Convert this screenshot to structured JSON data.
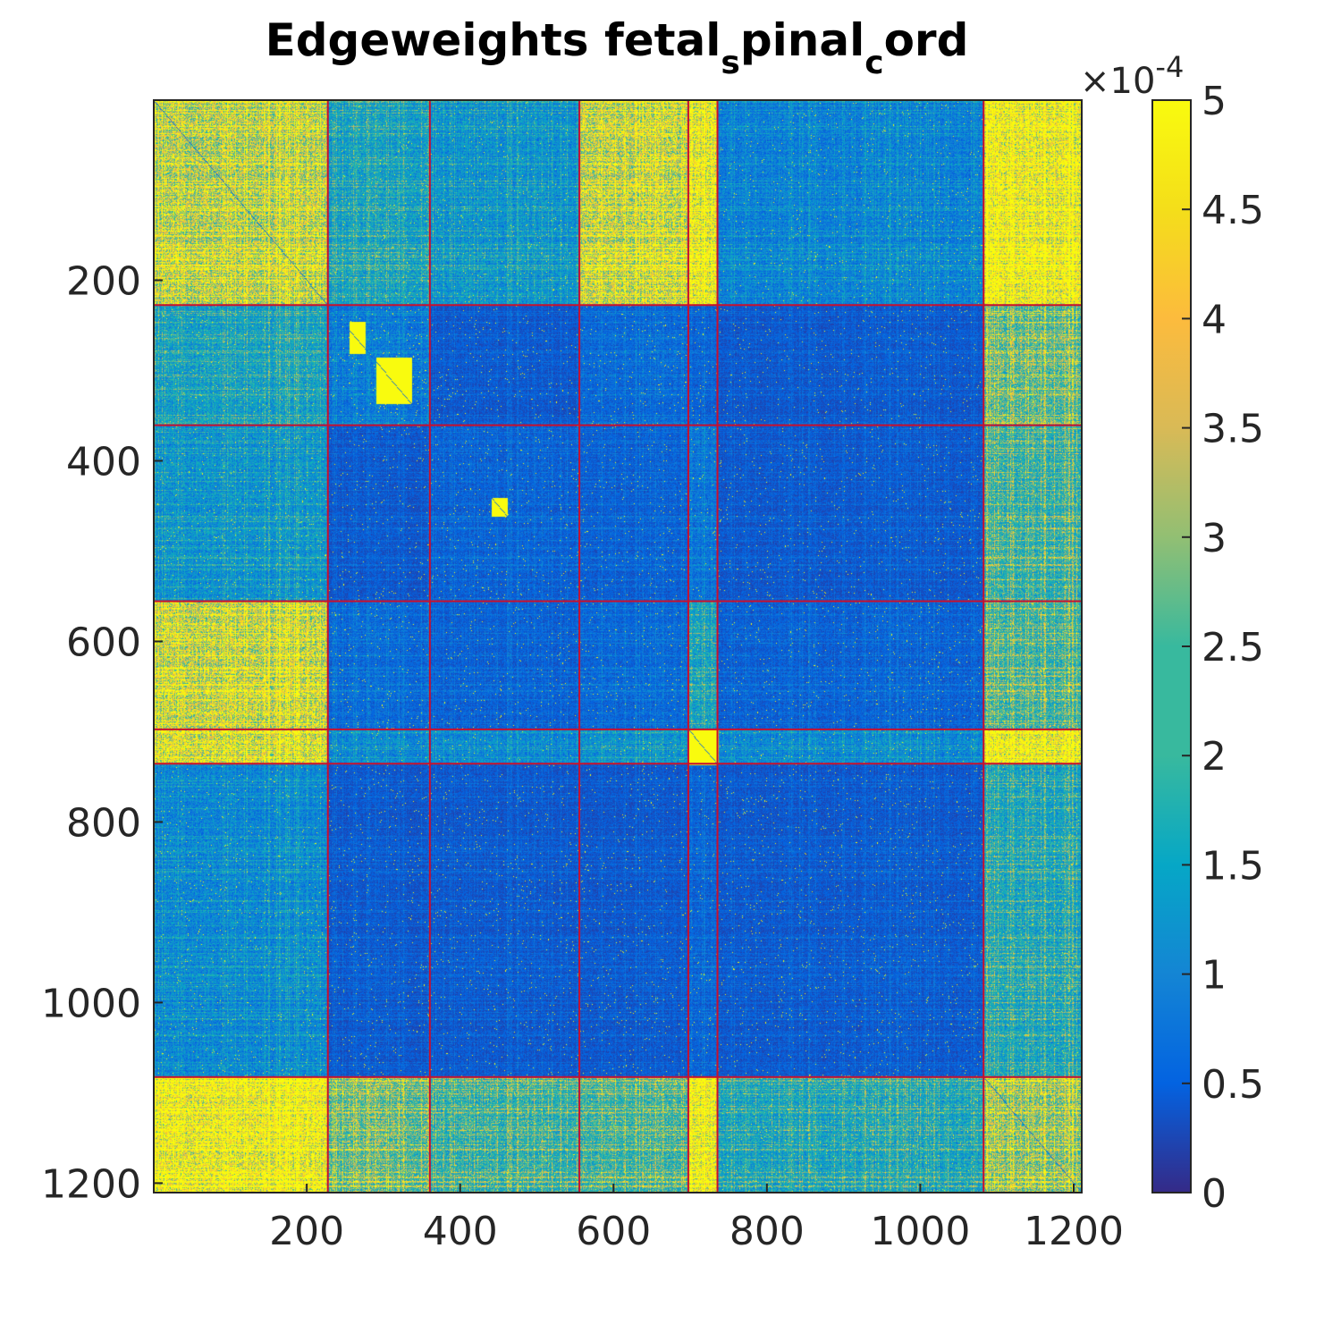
{
  "chart_data": {
    "type": "heatmap",
    "title": {
      "prefix": "Edgeweights fetal",
      "sub1": "s",
      "mid": "pinal",
      "sub2": "c",
      "suffix": "ord"
    },
    "xlabel": "",
    "ylabel": "",
    "n": 1210,
    "xlim": [
      0.5,
      1210.5
    ],
    "ylim": [
      0.5,
      1210.5
    ],
    "y_direction": "reversed",
    "x_ticks": [
      200,
      400,
      600,
      800,
      1000,
      1200
    ],
    "x_tick_labels": [
      "200",
      "400",
      "600",
      "800",
      "1000",
      "1200"
    ],
    "y_ticks": [
      200,
      400,
      600,
      800,
      1000,
      1200
    ],
    "y_tick_labels": [
      "200",
      "400",
      "600",
      "800",
      "1000",
      "1200"
    ],
    "colormap": "parula",
    "color_limits": [
      0,
      0.0005
    ],
    "colorbar": {
      "ticks": [
        0,
        0.5,
        1,
        1.5,
        2,
        2.5,
        3,
        3.5,
        4,
        4.5,
        5
      ],
      "tick_labels": [
        "0",
        "0.5",
        "1",
        "1.5",
        "2",
        "2.5",
        "3",
        "3.5",
        "4",
        "4.5",
        "5"
      ],
      "multiplier": "×10",
      "exponent": "-4"
    },
    "module_boundaries": [
      227,
      360,
      555,
      697,
      735,
      1082
    ],
    "module_mean_weights_e4": [
      [
        3.5,
        1.5,
        1.2,
        3.8,
        4.5,
        0.9,
        4.8
      ],
      [
        1.5,
        0.8,
        0.4,
        0.6,
        0.5,
        0.4,
        2.5
      ],
      [
        1.2,
        0.4,
        0.5,
        0.5,
        0.7,
        0.4,
        2.0
      ],
      [
        3.8,
        0.6,
        0.5,
        0.6,
        1.5,
        0.5,
        2.2
      ],
      [
        4.0,
        1.0,
        1.0,
        1.2,
        5.0,
        1.0,
        4.8
      ],
      [
        1.0,
        0.4,
        0.4,
        0.4,
        0.5,
        0.4,
        1.6
      ],
      [
        4.8,
        2.5,
        2.0,
        2.2,
        4.8,
        1.6,
        3.0
      ]
    ],
    "highlighted_blocks": [
      {
        "rows": [
          245,
          280
        ],
        "cols": [
          255,
          275
        ],
        "value_e4": 5
      },
      {
        "rows": [
          285,
          335
        ],
        "cols": [
          290,
          335
        ],
        "value_e4": 5
      },
      {
        "rows": [
          440,
          460
        ],
        "cols": [
          440,
          460
        ],
        "value_e4": 5
      },
      {
        "rows": [
          697,
          735
        ],
        "cols": [
          697,
          735
        ],
        "value_e4": 5
      }
    ],
    "grid": false,
    "boundary_line_color": "#c8102e",
    "axes_color": "#262626"
  }
}
